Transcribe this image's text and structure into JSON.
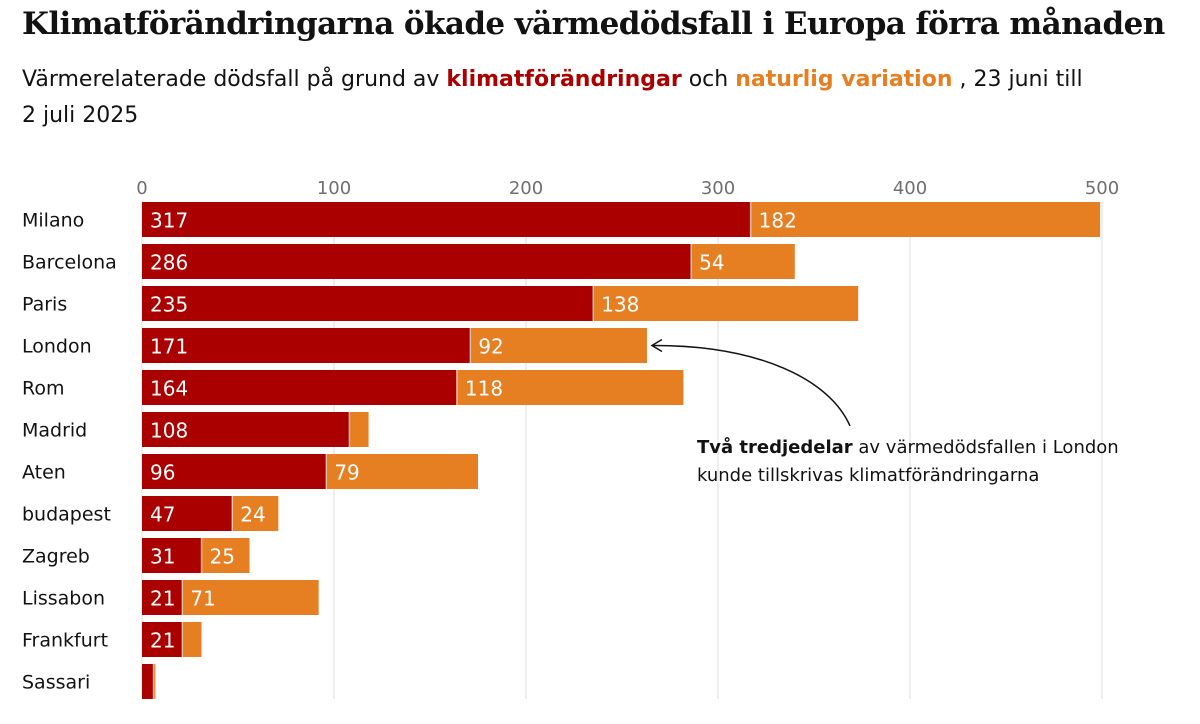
{
  "title": "Klimatförändringarna ökade värmedödsfall i Europa förra månaden",
  "subtitle": {
    "prefix": "Värmerelaterade dödsfall på grund av",
    "climate_label": "klimatförändringar",
    "and": "och",
    "natural_label": "naturlig variation",
    "suffix": ", 23 juni till 2 juli 2025"
  },
  "colors": {
    "climate": "#ab0000",
    "natural": "#e67e22",
    "grid": "#dcdcdc",
    "axis_text": "#707070"
  },
  "chart_data": {
    "type": "bar",
    "orientation": "horizontal",
    "stacked": true,
    "categories": [
      "Milano",
      "Barcelona",
      "Paris",
      "London",
      "Rom",
      "Madrid",
      "Aten",
      "budapest",
      "Zagreb",
      "Lissabon",
      "Frankfurt",
      "Sassari"
    ],
    "series": [
      {
        "name": "klimatförändringar",
        "color": "#ab0000",
        "values": [
          317,
          286,
          235,
          171,
          164,
          108,
          96,
          47,
          31,
          21,
          21,
          6
        ],
        "labels": [
          "317",
          "286",
          "235",
          "171",
          "164",
          "108",
          "96",
          "47",
          "31",
          "21",
          "21",
          ""
        ]
      },
      {
        "name": "naturlig variation",
        "color": "#e67e22",
        "values": [
          182,
          54,
          138,
          92,
          118,
          10,
          79,
          24,
          25,
          71,
          10,
          1
        ],
        "labels": [
          "182",
          "54",
          "138",
          "92",
          "118",
          "",
          "79",
          "24",
          "25",
          "71",
          "",
          ""
        ]
      }
    ],
    "xlim": [
      0,
      500
    ],
    "xticks": [
      0,
      100,
      200,
      300,
      400,
      500
    ],
    "grid": true,
    "annotation": {
      "bold": "Två tredjedelar",
      "line1": "av värmedödsfallen i London",
      "line2": "kunde tillskrivas klimatförändringarna",
      "target": "London"
    }
  }
}
